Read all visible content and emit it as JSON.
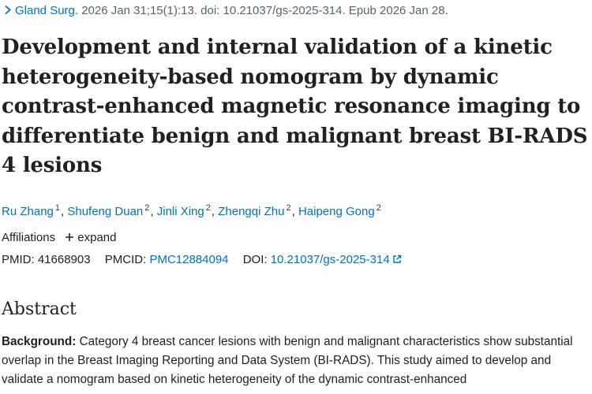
{
  "citation": {
    "journal": "Gland Surg.",
    "details": "2026 Jan 31;15(1):13. doi: 10.21037/gs-2025-314. Epub 2026 Jan 28."
  },
  "article": {
    "title": "Development and internal validation of a kinetic heterogeneity-based nomogram by dynamic contrast-enhanced magnetic resonance imaging to differentiate benign and malignant breast BI-RADS 4 lesions"
  },
  "authors": [
    {
      "name": "Ru Zhang",
      "affil": "1"
    },
    {
      "name": "Shufeng Duan",
      "affil": "2"
    },
    {
      "name": "Jinli Xing",
      "affil": "2"
    },
    {
      "name": "Zhengqi Zhu",
      "affil": "2"
    },
    {
      "name": "Haipeng Gong",
      "affil": "2"
    }
  ],
  "affiliations": {
    "label": "Affiliations",
    "expand_label": "expand"
  },
  "identifiers": {
    "pmid_label": "PMID:",
    "pmid": "41668903",
    "pmcid_label": "PMCID:",
    "pmcid": "PMC12884094",
    "doi_label": "DOI:",
    "doi": "10.21037/gs-2025-314"
  },
  "abstract": {
    "heading": "Abstract",
    "background_label": "Background:",
    "background_text": "Category 4 breast cancer lesions with benign and malignant characteristics show substantial overlap in the Breast Imaging Reporting and Data System (BI-RADS). This study aimed to develop and validate a nomogram based on kinetic heterogeneity of the dynamic contrast-enhanced"
  },
  "icons": {
    "chevron": "chevron-right-icon",
    "plus": "plus-icon",
    "external": "external-link-icon"
  },
  "colors": {
    "link": "#0071bc",
    "text": "#212121"
  }
}
